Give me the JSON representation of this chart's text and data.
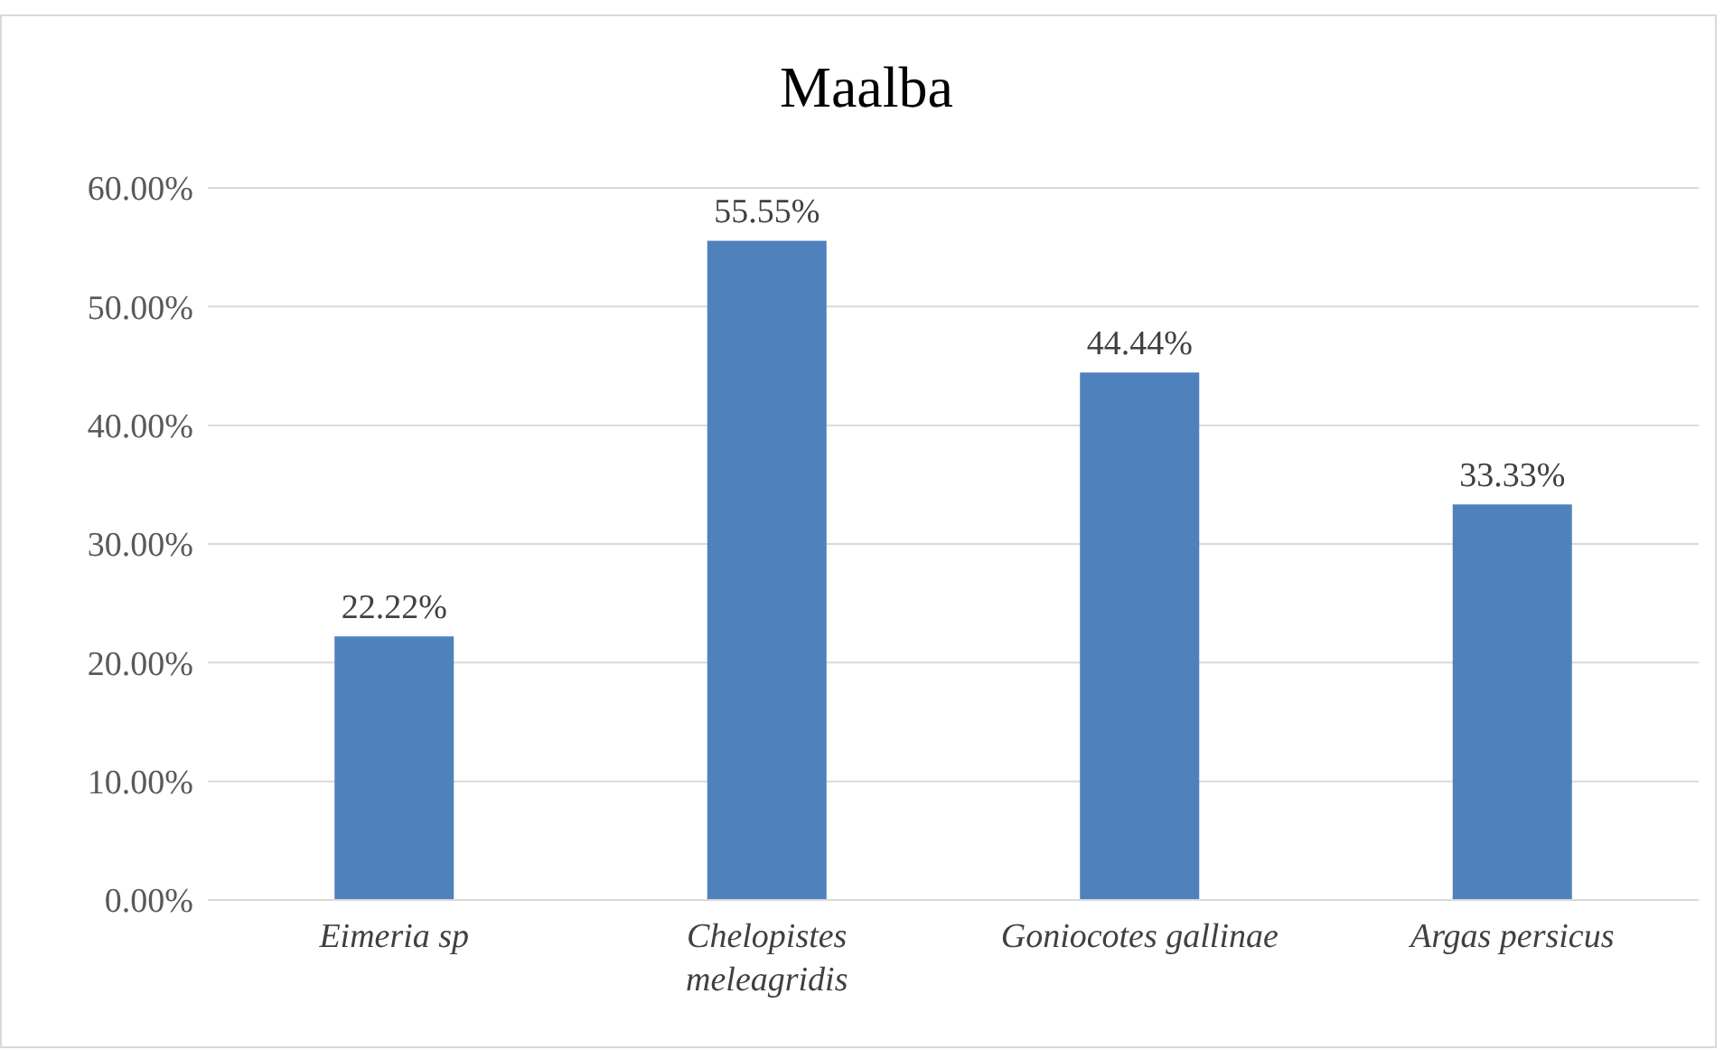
{
  "chart_data": {
    "type": "bar",
    "title": "Maalba",
    "categories": [
      "Eimeria sp",
      "Chelopistes meleagridis",
      "Goniocotes gallinae",
      "Argas persicus"
    ],
    "values": [
      22.22,
      55.55,
      44.44,
      33.33
    ],
    "value_labels": [
      "22.22%",
      "55.55%",
      "44.44%",
      "33.33%"
    ],
    "color": "#4f81bd",
    "ylim": [
      0,
      60
    ],
    "yticks": [
      {
        "value": 0,
        "label": "0.00%"
      },
      {
        "value": 10,
        "label": "10.00%"
      },
      {
        "value": 20,
        "label": "20.00%"
      },
      {
        "value": 30,
        "label": "30.00%"
      },
      {
        "value": 40,
        "label": "40.00%"
      },
      {
        "value": 50,
        "label": "50.00%"
      },
      {
        "value": 60,
        "label": "60.00%"
      }
    ],
    "grid": "y",
    "legend": false
  }
}
